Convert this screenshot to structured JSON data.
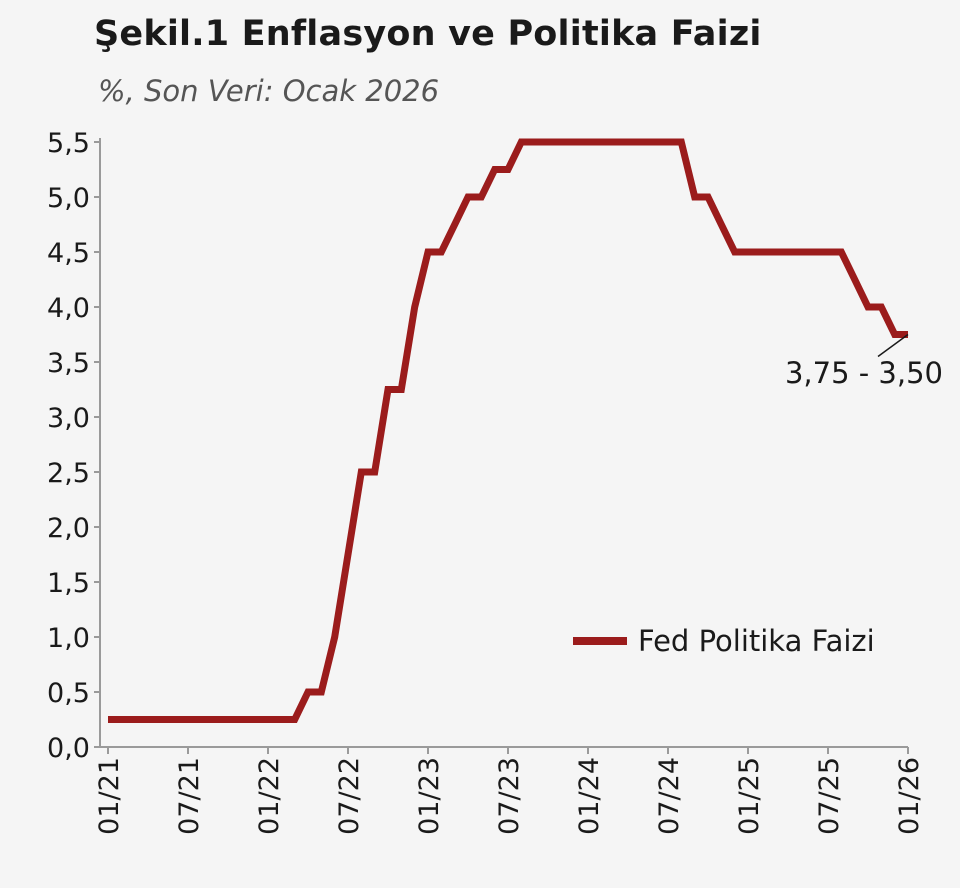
{
  "title": "Şekil.1 Enflasyon ve Politika Faizi",
  "subtitle": "%, Son Veri: Ocak 2026",
  "chart_data": {
    "type": "line",
    "title": "Şekil.1 Enflasyon ve Politika Faizi",
    "subtitle": "%, Son Veri: Ocak 2026",
    "xlabel": "",
    "ylabel": "",
    "ylim": [
      0,
      5.5
    ],
    "y_ticks": [
      "0,0",
      "0,5",
      "1,0",
      "1,5",
      "2,0",
      "2,5",
      "3,0",
      "3,5",
      "4,0",
      "4,5",
      "5,0",
      "5,5"
    ],
    "y_tick_values": [
      0,
      0.5,
      1.0,
      1.5,
      2.0,
      2.5,
      3.0,
      3.5,
      4.0,
      4.5,
      5.0,
      5.5
    ],
    "x_ticks": [
      "01/21",
      "07/21",
      "01/22",
      "07/22",
      "01/23",
      "07/23",
      "01/24",
      "07/24",
      "01/25",
      "07/25",
      "01/26"
    ],
    "grid": false,
    "legend_position": "right",
    "annotation": "3,75 - 3,50",
    "series": [
      {
        "name": "Fed Politika Faizi",
        "color": "#9b1c1c",
        "x": [
          "2021-01",
          "2021-02",
          "2021-03",
          "2021-04",
          "2021-05",
          "2021-06",
          "2021-07",
          "2021-08",
          "2021-09",
          "2021-10",
          "2021-11",
          "2021-12",
          "2022-01",
          "2022-02",
          "2022-03",
          "2022-04",
          "2022-05",
          "2022-06",
          "2022-07",
          "2022-08",
          "2022-09",
          "2022-10",
          "2022-11",
          "2022-12",
          "2023-01",
          "2023-02",
          "2023-03",
          "2023-04",
          "2023-05",
          "2023-06",
          "2023-07",
          "2023-08",
          "2023-09",
          "2023-10",
          "2023-11",
          "2023-12",
          "2024-01",
          "2024-02",
          "2024-03",
          "2024-04",
          "2024-05",
          "2024-06",
          "2024-07",
          "2024-08",
          "2024-09",
          "2024-10",
          "2024-11",
          "2024-12",
          "2025-01",
          "2025-02",
          "2025-03",
          "2025-04",
          "2025-05",
          "2025-06",
          "2025-07",
          "2025-08",
          "2025-09",
          "2025-10",
          "2025-11",
          "2025-12",
          "2026-01"
        ],
        "values": [
          0.25,
          0.25,
          0.25,
          0.25,
          0.25,
          0.25,
          0.25,
          0.25,
          0.25,
          0.25,
          0.25,
          0.25,
          0.25,
          0.25,
          0.25,
          0.5,
          0.5,
          1.0,
          1.75,
          2.5,
          2.5,
          3.25,
          3.25,
          4.0,
          4.5,
          4.5,
          4.75,
          5.0,
          5.0,
          5.25,
          5.25,
          5.5,
          5.5,
          5.5,
          5.5,
          5.5,
          5.5,
          5.5,
          5.5,
          5.5,
          5.5,
          5.5,
          5.5,
          5.5,
          5.0,
          5.0,
          4.75,
          4.5,
          4.5,
          4.5,
          4.5,
          4.5,
          4.5,
          4.5,
          4.5,
          4.5,
          4.25,
          4.0,
          4.0,
          3.75,
          3.75
        ]
      }
    ]
  }
}
